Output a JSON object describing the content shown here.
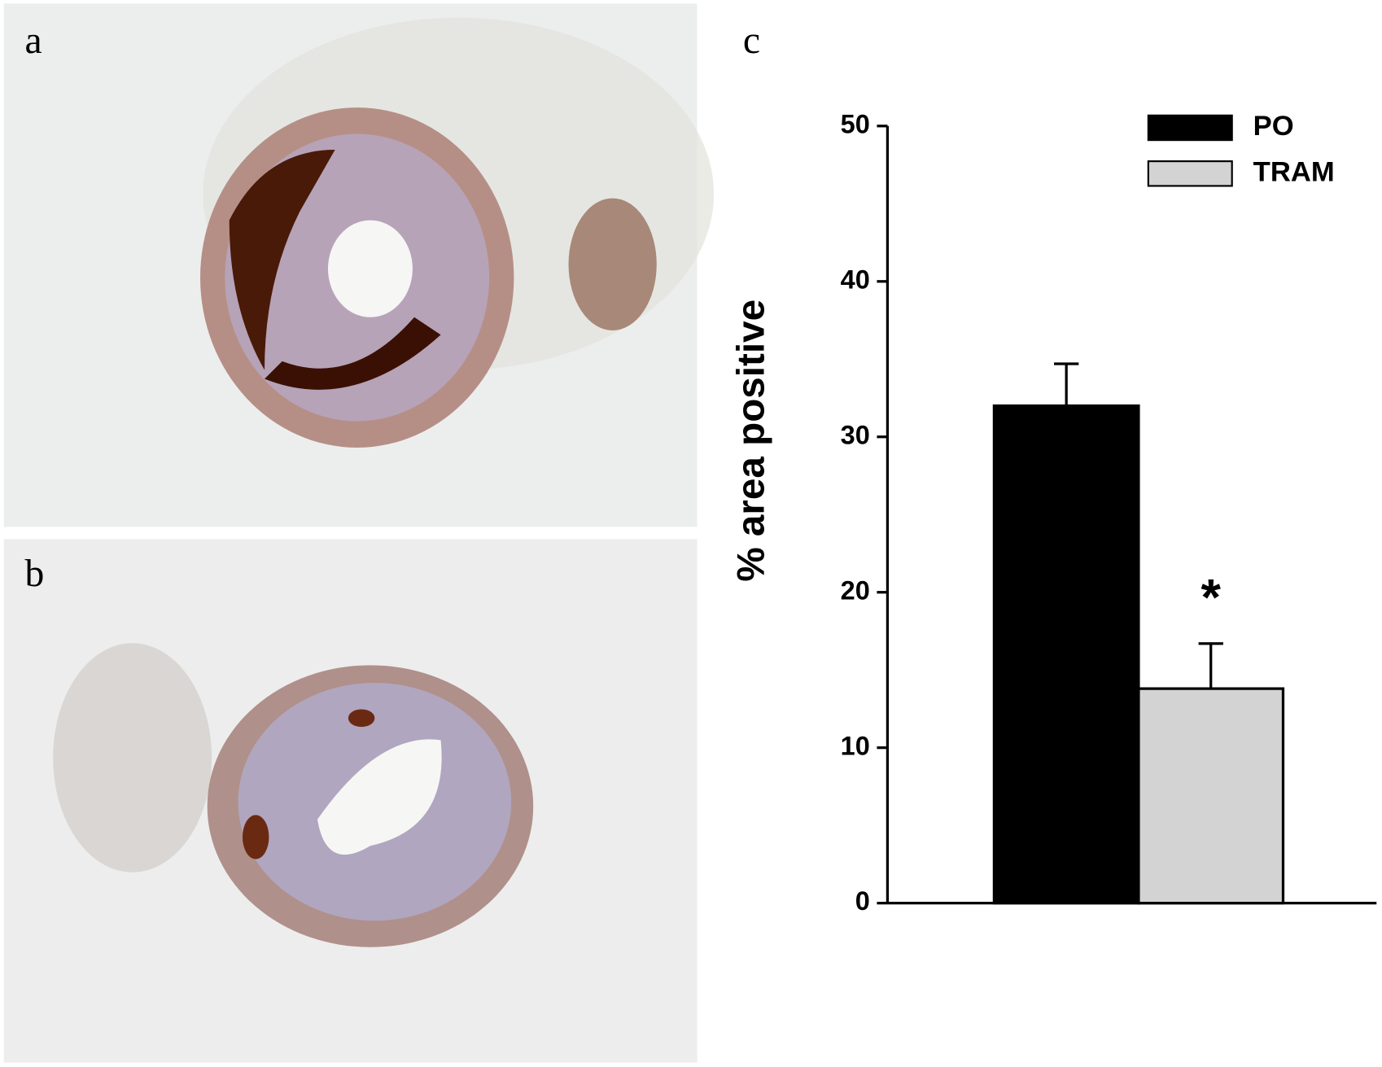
{
  "panels": [
    "a",
    "b",
    "c"
  ],
  "chart_data": {
    "type": "bar",
    "ylabel": "% area positive",
    "categories": [
      null
    ],
    "series": [
      {
        "name": "PO",
        "color": "#000000",
        "values": [
          32
        ],
        "errors": [
          2.7
        ]
      },
      {
        "name": "TRAM",
        "color": "#d3d3d3",
        "values": [
          13.8
        ],
        "errors": [
          2.9
        ]
      }
    ],
    "annotations": [
      "*"
    ],
    "ylim": [
      0,
      50
    ],
    "yticks": [
      0,
      10,
      20,
      30,
      40,
      50
    ],
    "legend": "upper right",
    "grid": false
  }
}
